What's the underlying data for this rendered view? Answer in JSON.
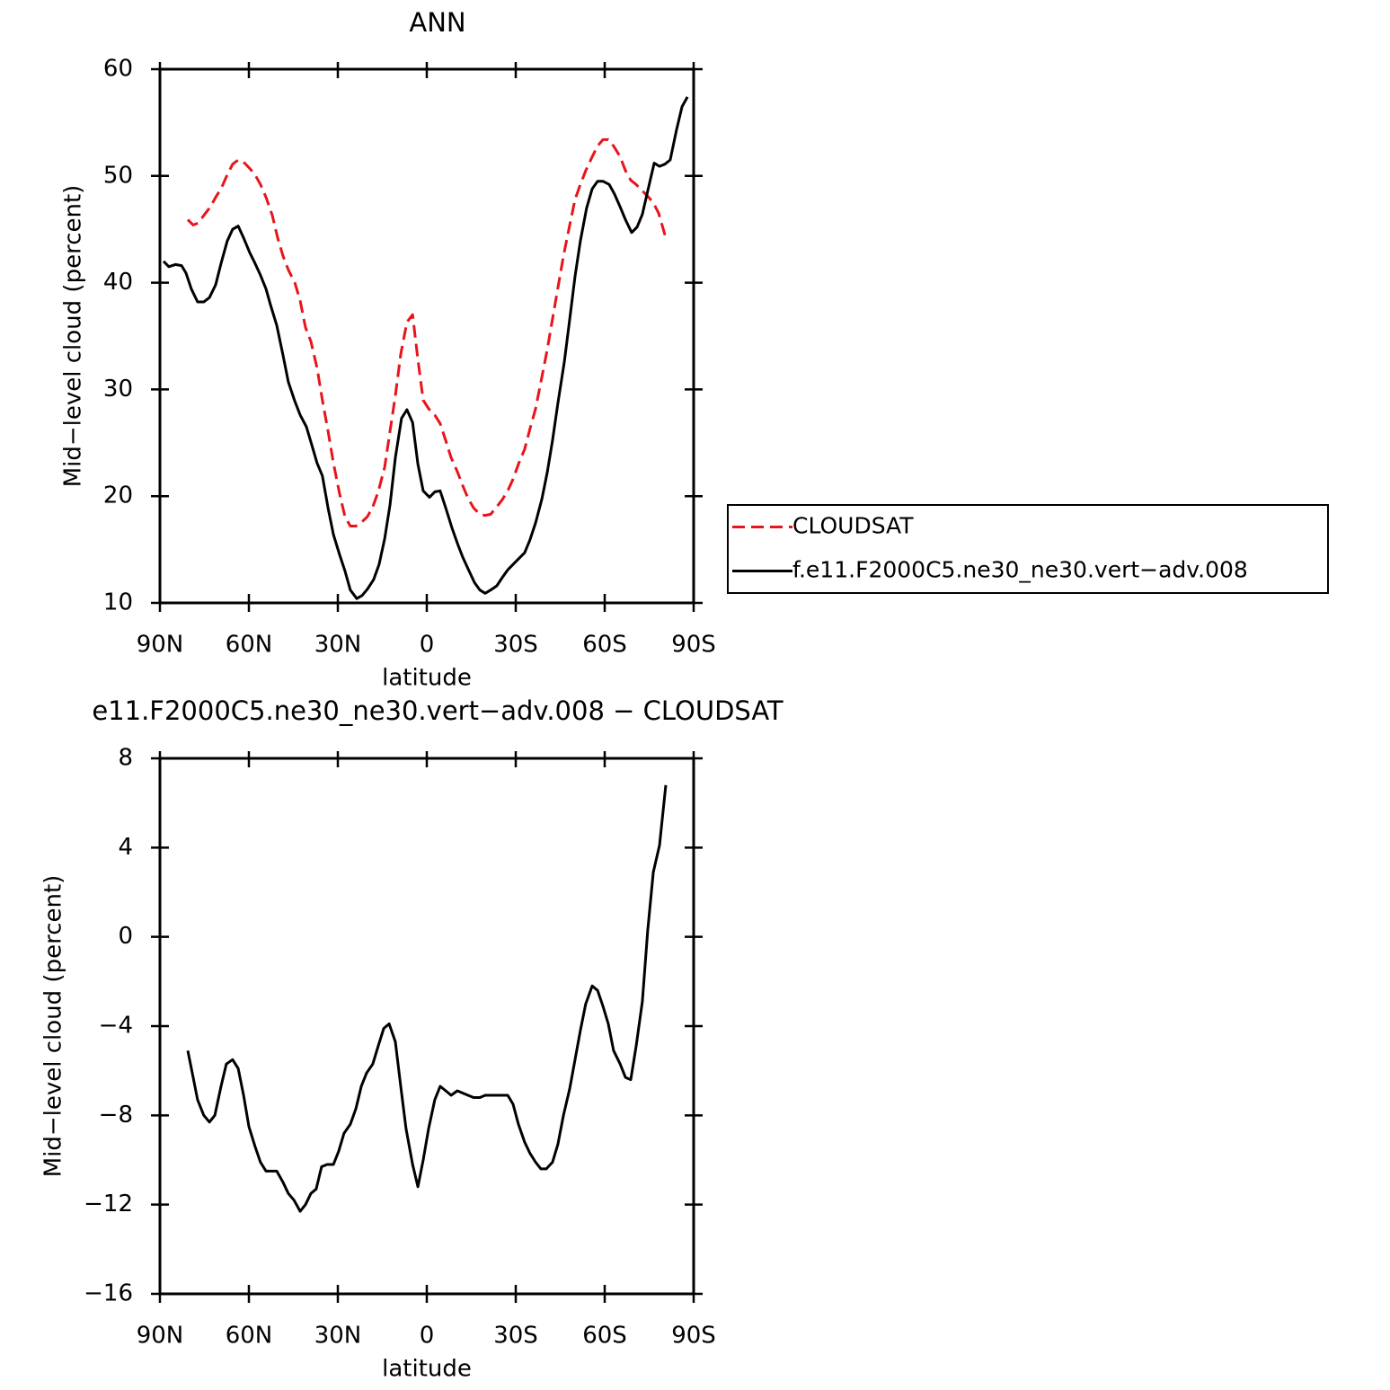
{
  "chart_data": [
    {
      "type": "line",
      "title": "ANN",
      "xlabel": "latitude",
      "ylabel": "Mid−level cloud (percent)",
      "xlim": [
        90,
        -90
      ],
      "xticks": [
        {
          "value": 90,
          "label": "90N"
        },
        {
          "value": 60,
          "label": "60N"
        },
        {
          "value": 30,
          "label": "30N"
        },
        0,
        {
          "value": -30,
          "label": "30S"
        },
        {
          "value": -60,
          "label": "60S"
        },
        {
          "value": -90,
          "label": "90S"
        }
      ],
      "ylim": [
        10,
        60
      ],
      "yticks": [
        10,
        20,
        30,
        40,
        50,
        60
      ],
      "legend": "right",
      "series": [
        {
          "name": "CLOUDSAT",
          "color": "#e8141b",
          "line_style": "dashed",
          "x": [
            80.6,
            78.8,
            77.0,
            75.2,
            73.0,
            71.2,
            69.4,
            67.3,
            65.5,
            63.6,
            61.8,
            59.7,
            57.9,
            56.1,
            54.2,
            52.1,
            50.3,
            48.5,
            46.7,
            44.5,
            42.7,
            40.9,
            39.1,
            37.0,
            35.2,
            33.3,
            31.5,
            29.4,
            27.6,
            25.8,
            23.9,
            21.8,
            20.0,
            18.2,
            16.4,
            14.2,
            12.4,
            10.6,
            8.8,
            6.7,
            4.8,
            3.0,
            1.2,
            -0.6,
            -2.7,
            -4.5,
            -6.4,
            -8.2,
            -10.3,
            -12.1,
            -13.9,
            -15.8,
            -17.9,
            -19.7,
            -21.5,
            -23.3,
            -25.5,
            -27.3,
            -29.1,
            -30.9,
            -33.0,
            -34.8,
            -36.7,
            -38.5,
            -40.6,
            -42.4,
            -44.2,
            -46.1,
            -48.2,
            -50.0,
            -51.8,
            -53.6,
            -55.8,
            -57.6,
            -59.4,
            -61.2,
            -63.0,
            -65.2,
            -67.0,
            -68.8,
            -70.6,
            -72.7,
            -74.5,
            -76.4,
            -78.2,
            -80.6
          ],
          "values": [
            45.9,
            45.4,
            45.6,
            46.3,
            47.1,
            48.0,
            48.8,
            50.1,
            51.1,
            51.5,
            51.3,
            50.7,
            50.1,
            49.2,
            48.0,
            46.3,
            44.2,
            42.5,
            41.2,
            40.0,
            38.3,
            35.8,
            34.5,
            32.0,
            29.0,
            26.1,
            23.1,
            20.2,
            18.1,
            17.2,
            17.2,
            17.6,
            18.1,
            19.0,
            20.4,
            22.7,
            26.1,
            29.4,
            33.3,
            36.3,
            37.0,
            32.8,
            29.0,
            28.2,
            27.6,
            26.8,
            25.2,
            23.6,
            22.3,
            21.0,
            19.8,
            18.9,
            18.3,
            18.2,
            18.3,
            18.9,
            19.7,
            20.5,
            21.6,
            23.0,
            24.4,
            26.3,
            28.2,
            30.7,
            33.7,
            36.6,
            39.5,
            42.5,
            45.4,
            47.8,
            49.2,
            50.5,
            51.8,
            52.8,
            53.4,
            53.4,
            52.8,
            51.8,
            50.5,
            49.6,
            49.2,
            48.6,
            48.1,
            47.5,
            46.5,
            44.2
          ]
        },
        {
          "name": "f.e11.F2000C5.ne30_ne30.vert−adv.008",
          "color": "#000000",
          "line_style": "solid",
          "x": [
            88.8,
            87.0,
            84.8,
            82.7,
            81.2,
            79.4,
            77.3,
            75.2,
            73.3,
            71.2,
            69.4,
            67.3,
            65.5,
            63.6,
            61.8,
            59.7,
            57.9,
            56.1,
            54.2,
            52.7,
            50.6,
            48.5,
            46.7,
            44.5,
            42.7,
            40.6,
            38.8,
            37.0,
            35.2,
            33.3,
            31.5,
            29.4,
            27.6,
            25.8,
            23.6,
            21.8,
            20.0,
            17.9,
            16.1,
            14.2,
            12.4,
            10.6,
            8.5,
            6.7,
            4.8,
            3.0,
            1.2,
            -0.9,
            -2.7,
            -4.5,
            -6.4,
            -8.5,
            -10.3,
            -12.1,
            -13.9,
            -16.1,
            -17.9,
            -19.7,
            -21.5,
            -23.6,
            -25.5,
            -27.3,
            -29.1,
            -31.2,
            -33.0,
            -34.8,
            -36.7,
            -38.8,
            -40.6,
            -42.4,
            -44.2,
            -46.4,
            -48.2,
            -50.0,
            -51.8,
            -53.9,
            -55.8,
            -57.6,
            -59.4,
            -61.5,
            -63.3,
            -65.2,
            -67.0,
            -69.1,
            -70.9,
            -72.7,
            -74.5,
            -76.7,
            -78.5,
            -80.3,
            -82.1,
            -84.2,
            -86.1,
            -87.9
          ],
          "values": [
            42.0,
            41.5,
            41.7,
            41.6,
            40.9,
            39.4,
            38.2,
            38.2,
            38.6,
            39.8,
            41.8,
            43.9,
            45.0,
            45.3,
            44.2,
            42.8,
            41.8,
            40.7,
            39.4,
            37.9,
            36.0,
            33.2,
            30.7,
            28.9,
            27.6,
            26.5,
            24.8,
            23.1,
            21.9,
            18.9,
            16.4,
            14.5,
            13.0,
            11.2,
            10.4,
            10.7,
            11.3,
            12.2,
            13.6,
            16.0,
            19.2,
            23.6,
            27.3,
            28.1,
            26.9,
            23.0,
            20.5,
            19.9,
            20.4,
            20.5,
            18.9,
            17.0,
            15.6,
            14.3,
            13.2,
            11.9,
            11.2,
            10.9,
            11.2,
            11.6,
            12.4,
            13.1,
            13.6,
            14.2,
            14.7,
            15.9,
            17.5,
            19.7,
            22.2,
            25.2,
            28.7,
            32.6,
            36.6,
            40.6,
            43.9,
            47.0,
            48.8,
            49.5,
            49.5,
            49.2,
            48.3,
            47.1,
            45.9,
            44.7,
            45.2,
            46.4,
            48.6,
            51.2,
            50.9,
            51.1,
            51.5,
            54.3,
            56.5,
            57.4
          ]
        }
      ]
    },
    {
      "type": "line",
      "title": "e11.F2000C5.ne30_ne30.vert−adv.008 − CLOUDSAT",
      "xlabel": "latitude",
      "ylabel": "Mid−level cloud (percent)",
      "xlim": [
        90,
        -90
      ],
      "xticks": [
        {
          "value": 90,
          "label": "90N"
        },
        {
          "value": 60,
          "label": "60N"
        },
        {
          "value": 30,
          "label": "30N"
        },
        0,
        {
          "value": -30,
          "label": "30S"
        },
        {
          "value": -60,
          "label": "60S"
        },
        {
          "value": -90,
          "label": "90S"
        }
      ],
      "ylim": [
        -16,
        8
      ],
      "yticks": [
        {
          "value": -16,
          "label": "−16"
        },
        {
          "value": -12,
          "label": "−12"
        },
        {
          "value": -8,
          "label": "−8"
        },
        {
          "value": -4,
          "label": "−4"
        },
        0,
        4,
        8
      ],
      "color": "#000000",
      "x": [
        80.6,
        79.1,
        77.3,
        75.2,
        73.3,
        71.5,
        69.4,
        67.6,
        65.5,
        63.6,
        61.8,
        60.0,
        57.9,
        56.1,
        54.2,
        52.4,
        50.6,
        48.5,
        46.7,
        44.8,
        42.7,
        40.9,
        39.1,
        37.3,
        35.5,
        33.6,
        31.5,
        29.7,
        27.9,
        25.8,
        23.9,
        22.1,
        20.3,
        18.2,
        16.4,
        14.5,
        12.7,
        10.6,
        8.8,
        7.0,
        4.8,
        3.0,
        1.2,
        -0.6,
        -2.7,
        -4.5,
        -6.4,
        -8.2,
        -10.3,
        -12.1,
        -13.9,
        -15.8,
        -17.9,
        -19.7,
        -21.5,
        -23.3,
        -25.5,
        -27.3,
        -29.1,
        -30.9,
        -33.0,
        -34.8,
        -36.7,
        -38.5,
        -40.3,
        -42.4,
        -44.2,
        -46.1,
        -48.2,
        -50.0,
        -51.8,
        -53.6,
        -55.8,
        -57.6,
        -59.4,
        -61.2,
        -63.0,
        -65.2,
        -67.0,
        -68.8,
        -70.6,
        -72.7,
        -74.5,
        -76.4,
        -78.5,
        -80.6
      ],
      "values": [
        -5.1,
        -6.1,
        -7.3,
        -8.0,
        -8.3,
        -8.0,
        -6.7,
        -5.7,
        -5.5,
        -5.9,
        -7.1,
        -8.5,
        -9.4,
        -10.1,
        -10.5,
        -10.5,
        -10.5,
        -11.0,
        -11.5,
        -11.8,
        -12.3,
        -12.0,
        -11.5,
        -11.3,
        -10.3,
        -10.2,
        -10.2,
        -9.6,
        -8.8,
        -8.4,
        -7.7,
        -6.7,
        -6.1,
        -5.7,
        -4.9,
        -4.1,
        -3.9,
        -4.7,
        -6.7,
        -8.6,
        -10.2,
        -11.2,
        -10.0,
        -8.6,
        -7.3,
        -6.7,
        -6.9,
        -7.1,
        -6.9,
        -7.0,
        -7.1,
        -7.2,
        -7.2,
        -7.1,
        -7.1,
        -7.1,
        -7.1,
        -7.1,
        -7.5,
        -8.4,
        -9.2,
        -9.7,
        -10.1,
        -10.4,
        -10.4,
        -10.1,
        -9.3,
        -8.0,
        -6.8,
        -5.5,
        -4.2,
        -3.0,
        -2.2,
        -2.4,
        -3.1,
        -3.9,
        -5.1,
        -5.7,
        -6.3,
        -6.4,
        -4.9,
        -2.9,
        0.3,
        2.9,
        4.1,
        6.8
      ]
    }
  ]
}
